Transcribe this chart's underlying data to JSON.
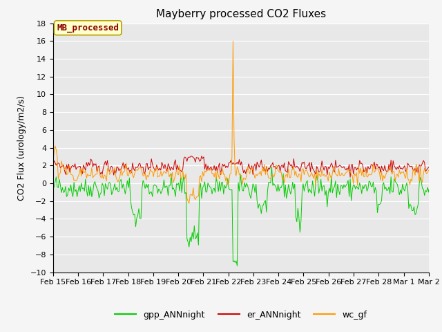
{
  "title": "Mayberry processed CO2 Fluxes",
  "ylabel": "CO2 Flux (urology/m2/s)",
  "ylim": [
    -10,
    18
  ],
  "yticks": [
    -10,
    -8,
    -6,
    -4,
    -2,
    0,
    2,
    4,
    6,
    8,
    10,
    12,
    14,
    16,
    18
  ],
  "xlabels": [
    "Feb 15",
    "Feb 16",
    "Feb 17",
    "Feb 18",
    "Feb 19",
    "Feb 20",
    "Feb 21",
    "Feb 22",
    "Feb 23",
    "Feb 24",
    "Feb 25",
    "Feb 26",
    "Feb 27",
    "Feb 28",
    "Mar 1",
    "Mar 2"
  ],
  "n_points": 384,
  "legend_labels": [
    "gpp_ANNnight",
    "er_ANNnight",
    "wc_gf"
  ],
  "line_colors": [
    "#00cc00",
    "#cc0000",
    "#ff9900"
  ],
  "watermark_text": "MB_processed",
  "watermark_color": "#8B0000",
  "watermark_bg": "#ffffcc",
  "watermark_border": "#b8a000",
  "plot_bg_color": "#e8e8e8",
  "fig_bg_color": "#f5f5f5",
  "grid_color": "#ffffff",
  "title_fontsize": 11,
  "label_fontsize": 9,
  "tick_fontsize": 8,
  "legend_fontsize": 9,
  "watermark_fontsize": 9
}
